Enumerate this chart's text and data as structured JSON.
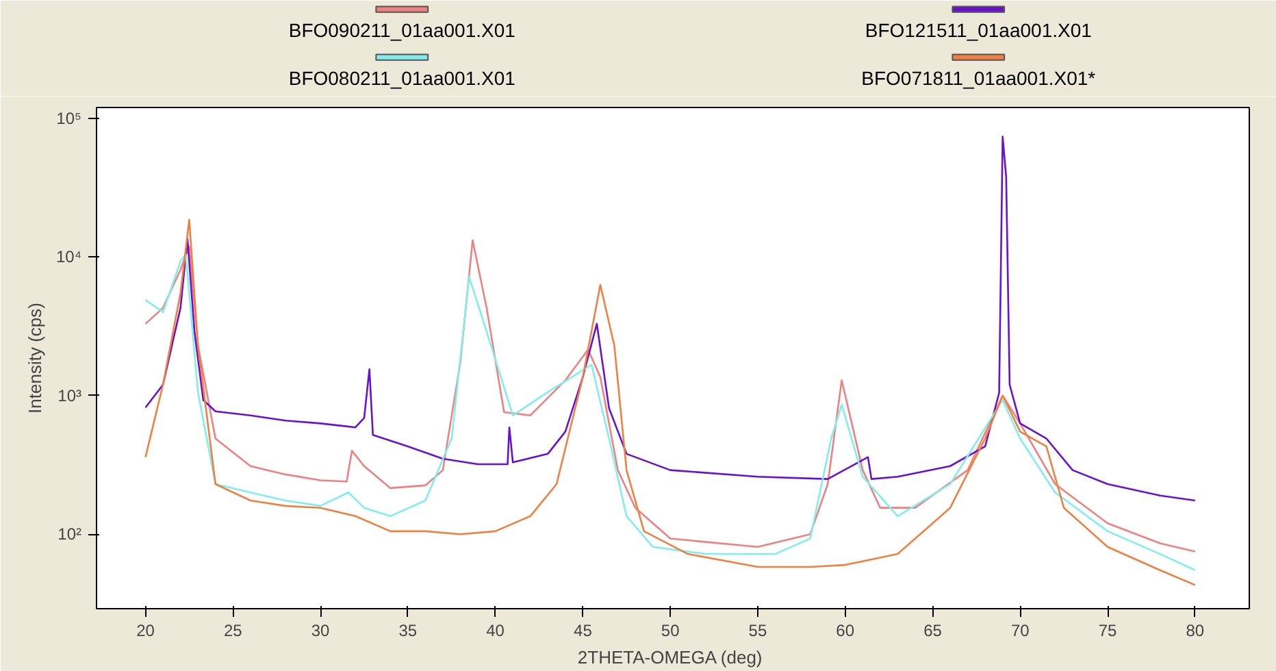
{
  "chart_data": {
    "type": "line",
    "xlabel": "2THETA-OMEGA  (deg)",
    "ylabel": "Intensity (cps)",
    "log": "y",
    "grid": false,
    "legend": "top",
    "xlim": [
      17.2,
      83.1
    ],
    "ylim": [
      29,
      120000
    ],
    "xticks": [
      20,
      25,
      30,
      35,
      40,
      45,
      50,
      55,
      60,
      65,
      70,
      75,
      80
    ],
    "yticks": [
      {
        "value": 100,
        "label": "10²"
      },
      {
        "value": 1000,
        "label": "10³"
      },
      {
        "value": 10000,
        "label": "10⁴"
      },
      {
        "value": 100000,
        "label": "10⁵"
      }
    ],
    "series": [
      {
        "name": "BFO090211_01aa001.X01",
        "color": "#f08080",
        "x": [
          20,
          21,
          22,
          22.5,
          23,
          24,
          26,
          28,
          30,
          31.5,
          31.8,
          32.5,
          34,
          36,
          37,
          38,
          38.7,
          39.5,
          40.5,
          42,
          44,
          45.3,
          46,
          47,
          48,
          50,
          55,
          58,
          59,
          59.8,
          61,
          62,
          64,
          67,
          69,
          70,
          72,
          75,
          78,
          80
        ],
        "values": [
          3300,
          4300,
          8100,
          12000,
          2300,
          490,
          310,
          270,
          245,
          240,
          400,
          310,
          215,
          225,
          290,
          1750,
          13200,
          4300,
          760,
          720,
          1290,
          2150,
          1360,
          290,
          155,
          93,
          81,
          100,
          230,
          1290,
          290,
          155,
          155,
          290,
          1000,
          630,
          230,
          120,
          86,
          75
        ]
      },
      {
        "name": "BFO121511_01aa001.X01",
        "color": "#6a10d0",
        "x": [
          20,
          21,
          22,
          22.4,
          22.8,
          23.3,
          24,
          26,
          28,
          30,
          32,
          32.5,
          32.8,
          33,
          35,
          37,
          39,
          40.7,
          40.8,
          41,
          43,
          44,
          45,
          45.8,
          46.5,
          47.5,
          50,
          55,
          59,
          61.3,
          61.5,
          63,
          66,
          68,
          68.8,
          69,
          69.2,
          69.4,
          70,
          71.5,
          73,
          75,
          78,
          80
        ],
        "values": [
          820,
          1200,
          4300,
          13500,
          2900,
          930,
          770,
          720,
          660,
          630,
          590,
          690,
          1550,
          520,
          430,
          350,
          320,
          320,
          590,
          330,
          380,
          550,
          1360,
          3300,
          810,
          380,
          290,
          260,
          250,
          360,
          250,
          260,
          310,
          430,
          1050,
          74000,
          38000,
          1200,
          630,
          490,
          290,
          230,
          190,
          175
        ]
      },
      {
        "name": "BFO080211_01aa001.X01",
        "color": "#80eeee",
        "x": [
          20,
          21,
          22,
          22.3,
          23,
          24,
          26,
          28,
          30,
          31.6,
          32.5,
          34,
          36,
          37.5,
          38.5,
          39.5,
          41,
          43,
          45.5,
          46.5,
          47.5,
          49,
          52,
          56,
          58,
          59.2,
          59.8,
          61,
          63,
          66,
          69,
          70,
          72,
          75,
          78,
          80
        ],
        "values": [
          4900,
          4000,
          9300,
          10500,
          1060,
          230,
          200,
          175,
          160,
          200,
          155,
          135,
          175,
          490,
          7200,
          2900,
          720,
          1060,
          1670,
          490,
          135,
          81,
          72,
          72,
          93,
          490,
          860,
          260,
          135,
          230,
          930,
          490,
          200,
          105,
          72,
          55
        ]
      },
      {
        "name": "BFO071811_01aa001.X01*",
        "color": "#f08040",
        "x": [
          20,
          21,
          22,
          22.5,
          23,
          24,
          26,
          28,
          30,
          32,
          34,
          36,
          38,
          40,
          42,
          43.5,
          45,
          46,
          46.8,
          47.5,
          48.5,
          51,
          55,
          58,
          60,
          63,
          66,
          68,
          69,
          70,
          71.5,
          72.5,
          75,
          78,
          80
        ],
        "values": [
          360,
          1200,
          5500,
          18600,
          2300,
          230,
          175,
          160,
          155,
          135,
          105,
          105,
          100,
          105,
          135,
          230,
          1360,
          6300,
          2300,
          290,
          105,
          72,
          58,
          58,
          60,
          72,
          155,
          490,
          1000,
          550,
          430,
          155,
          81,
          55,
          43
        ]
      }
    ]
  }
}
